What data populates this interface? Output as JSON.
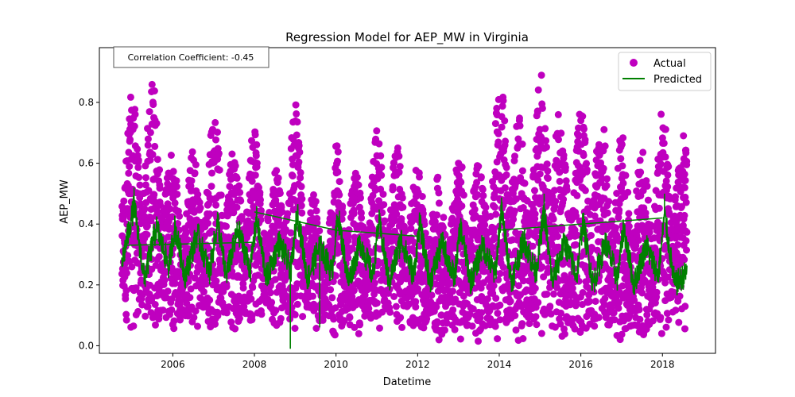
{
  "chart_data": {
    "type": "scatter",
    "title": "Regression Model for AEP_MW in Virginia",
    "xlabel": "Datetime",
    "ylabel": "AEP_MW",
    "xlim": [
      2004.2,
      2019.3
    ],
    "ylim": [
      -0.025,
      0.98
    ],
    "x_ticks": [
      2006,
      2008,
      2010,
      2012,
      2014,
      2016,
      2018
    ],
    "x_tick_labels": [
      "2006",
      "2008",
      "2010",
      "2012",
      "2014",
      "2016",
      "2018"
    ],
    "y_ticks": [
      0.0,
      0.2,
      0.4,
      0.6,
      0.8
    ],
    "y_tick_labels": [
      "0.0",
      "0.2",
      "0.4",
      "0.6",
      "0.8"
    ],
    "grid": false,
    "legend": {
      "placement": "top-right",
      "entries": [
        "Actual",
        "Predicted"
      ]
    },
    "annotation": "Correlation Coefficient: -0.45",
    "colors": {
      "actual": "#bf00bf",
      "predicted": "#008000"
    },
    "series": [
      {
        "name": "Actual",
        "kind": "scatter",
        "data_range": [
          2004.75,
          2018.6
        ],
        "value_range": [
          0.0,
          0.94
        ],
        "winter_peaks": [
          {
            "x": 2005.0,
            "y": 0.83
          },
          {
            "x": 2006.0,
            "y": 0.63
          },
          {
            "x": 2007.1,
            "y": 0.8
          },
          {
            "x": 2008.0,
            "y": 0.74
          },
          {
            "x": 2009.0,
            "y": 0.81
          },
          {
            "x": 2010.0,
            "y": 0.67
          },
          {
            "x": 2011.0,
            "y": 0.71
          },
          {
            "x": 2012.0,
            "y": 0.61
          },
          {
            "x": 2013.1,
            "y": 0.66
          },
          {
            "x": 2014.1,
            "y": 0.94
          },
          {
            "x": 2015.1,
            "y": 0.94
          },
          {
            "x": 2016.1,
            "y": 0.79
          },
          {
            "x": 2017.1,
            "y": 0.69
          },
          {
            "x": 2018.1,
            "y": 0.82
          }
        ],
        "summer_peaks": [
          {
            "x": 2005.6,
            "y": 0.9
          },
          {
            "x": 2006.6,
            "y": 0.66
          },
          {
            "x": 2007.6,
            "y": 0.65
          },
          {
            "x": 2008.5,
            "y": 0.57
          },
          {
            "x": 2009.6,
            "y": 0.43
          },
          {
            "x": 2010.6,
            "y": 0.57
          },
          {
            "x": 2011.6,
            "y": 0.66
          },
          {
            "x": 2012.6,
            "y": 0.55
          },
          {
            "x": 2013.6,
            "y": 0.6
          },
          {
            "x": 2014.6,
            "y": 0.7
          },
          {
            "x": 2015.6,
            "y": 0.73
          },
          {
            "x": 2016.6,
            "y": 0.76
          },
          {
            "x": 2017.6,
            "y": 0.64
          },
          {
            "x": 2018.5,
            "y": 0.7
          }
        ],
        "troughs": [
          {
            "x": 2005.3,
            "y": 0.05
          },
          {
            "x": 2006.3,
            "y": 0.04
          },
          {
            "x": 2007.3,
            "y": 0.05
          },
          {
            "x": 2008.3,
            "y": 0.05
          },
          {
            "x": 2009.3,
            "y": 0.05
          },
          {
            "x": 2010.3,
            "y": 0.02
          },
          {
            "x": 2011.3,
            "y": 0.05
          },
          {
            "x": 2012.3,
            "y": 0.01
          },
          {
            "x": 2013.3,
            "y": 0.01
          },
          {
            "x": 2014.3,
            "y": 0.01
          },
          {
            "x": 2015.3,
            "y": 0.01
          },
          {
            "x": 2016.3,
            "y": 0.01
          },
          {
            "x": 2017.3,
            "y": 0.0
          },
          {
            "x": 2018.3,
            "y": 0.03
          }
        ]
      },
      {
        "name": "Predicted",
        "kind": "line",
        "x": [
          2004.75,
          2005.05,
          2005.3,
          2005.6,
          2005.9,
          2006.05,
          2006.3,
          2006.6,
          2006.9,
          2007.1,
          2007.3,
          2007.6,
          2007.9,
          2008.05,
          2008.3,
          2008.6,
          2008.9,
          2009.05,
          2009.3,
          2009.6,
          2009.9,
          2010.05,
          2010.3,
          2010.6,
          2010.9,
          2011.05,
          2011.3,
          2011.6,
          2011.9,
          2012.05,
          2012.3,
          2012.6,
          2012.9,
          2013.05,
          2013.3,
          2013.6,
          2013.9,
          2014.05,
          2014.3,
          2014.6,
          2014.9,
          2015.1,
          2015.3,
          2015.6,
          2015.9,
          2016.05,
          2016.3,
          2016.6,
          2016.9,
          2017.05,
          2017.3,
          2017.6,
          2017.9,
          2018.05,
          2018.3,
          2018.6
        ],
        "y": [
          0.27,
          0.46,
          0.22,
          0.39,
          0.26,
          0.39,
          0.23,
          0.37,
          0.24,
          0.41,
          0.23,
          0.38,
          0.25,
          0.42,
          0.22,
          0.34,
          0.25,
          0.44,
          0.22,
          0.33,
          0.24,
          0.43,
          0.21,
          0.34,
          0.23,
          0.41,
          0.21,
          0.35,
          0.23,
          0.4,
          0.21,
          0.34,
          0.22,
          0.39,
          0.21,
          0.33,
          0.23,
          0.45,
          0.21,
          0.35,
          0.24,
          0.44,
          0.21,
          0.34,
          0.23,
          0.41,
          0.2,
          0.34,
          0.22,
          0.39,
          0.2,
          0.33,
          0.23,
          0.43,
          0.2,
          0.24
        ],
        "spikes": [
          {
            "x": 2008.88,
            "y": -0.01
          },
          {
            "x": 2009.6,
            "y": 0.06
          },
          {
            "x": 2005.05,
            "y": 0.52
          },
          {
            "x": 2015.1,
            "y": 0.5
          },
          {
            "x": 2018.05,
            "y": 0.5
          }
        ],
        "trend_segments": [
          {
            "x": [
              2008.0,
              2010.0
            ],
            "y": [
              0.44,
              0.38
            ]
          },
          {
            "x": [
              2010.0,
              2012.0
            ],
            "y": [
              0.38,
              0.36
            ]
          },
          {
            "x": [
              2014.0,
              2018.0
            ],
            "y": [
              0.38,
              0.42
            ]
          },
          {
            "x": [
              2004.8,
              2008.0
            ],
            "y": [
              0.33,
              0.34
            ]
          }
        ]
      }
    ]
  }
}
